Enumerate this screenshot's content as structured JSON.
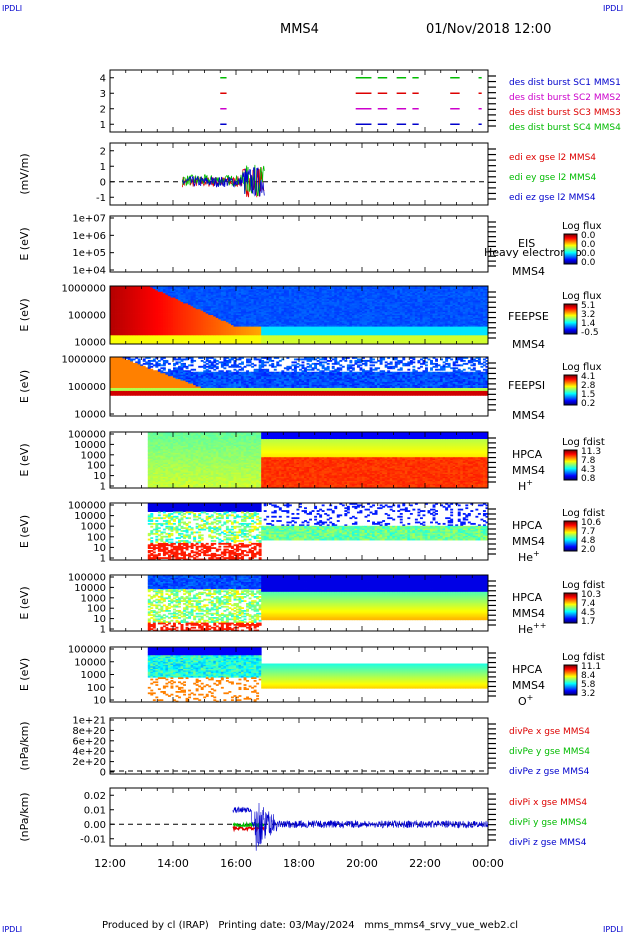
{
  "header": {
    "corner_label": "IPDLI",
    "spacecraft": "MMS4",
    "datetime": "01/Nov/2018 12:00"
  },
  "footer": {
    "corner_label": "IPDLI",
    "text": "Produced by cl (IRAP)   Printing date: 03/May/2024   mms_mms4_srvy_vue_web2.cl"
  },
  "colors": {
    "blue": "#0000cc",
    "magenta": "#cc00cc",
    "red": "#dd0000",
    "green": "#00bb00"
  },
  "chart_data": [
    {
      "type": "line",
      "title": "",
      "ylim": [
        0.5,
        4.5
      ],
      "y_ticks": [
        "4",
        "3",
        "2",
        "1"
      ],
      "legend": [
        {
          "label": "des dist burst SC1 MMS1",
          "color": "#0000cc"
        },
        {
          "label": "des dist burst SC2 MMS2",
          "color": "#cc00cc"
        },
        {
          "label": "des dist burst SC3 MMS3",
          "color": "#dd0000"
        },
        {
          "label": "des dist burst SC4 MMS4",
          "color": "#00bb00"
        }
      ],
      "burst_intervals_hours": [
        [
          15.5,
          15.7
        ],
        [
          19.8,
          20.3
        ],
        [
          20.5,
          20.8
        ],
        [
          21.1,
          21.4
        ],
        [
          21.6,
          21.8
        ],
        [
          22.8,
          23.1
        ],
        [
          23.7,
          23.8
        ]
      ]
    },
    {
      "type": "line",
      "ylabel": "(mV/m)",
      "ylim": [
        -1.5,
        2.5
      ],
      "y_ticks": [
        "2",
        "1",
        "0",
        "-1"
      ],
      "legend": [
        {
          "label": "edi ex gse l2 MMS4",
          "color": "#dd0000"
        },
        {
          "label": "edi ey gse l2 MMS4",
          "color": "#00bb00"
        },
        {
          "label": "edi ez gse l2 MMS4",
          "color": "#0000cc"
        }
      ],
      "data_range_hours": [
        14.3,
        16.9
      ]
    },
    {
      "type": "heatmap",
      "ylabel": "E (eV)",
      "y_ticks": [
        "1e+07",
        "1e+06",
        "1e+05",
        "1e+04"
      ],
      "instrument": "EIS",
      "species": "Heavy electron to",
      "spacecraft": "MMS4",
      "colorbar": {
        "title": "Log flux",
        "ticks": [
          "0.0",
          "0.0",
          "0.0",
          "0.0"
        ]
      }
    },
    {
      "type": "heatmap",
      "ylabel": "E (eV)",
      "y_ticks": [
        "1000000",
        "100000",
        "10000"
      ],
      "instrument": "FEEPSE",
      "spacecraft": "MMS4",
      "colorbar": {
        "title": "Log flux",
        "ticks": [
          "5.1",
          "3.2",
          "1.4",
          "-0.5"
        ]
      }
    },
    {
      "type": "heatmap",
      "ylabel": "E (eV)",
      "y_ticks": [
        "1000000",
        "100000",
        "10000"
      ],
      "instrument": "FEEPSI",
      "spacecraft": "MMS4",
      "colorbar": {
        "title": "Log flux",
        "ticks": [
          "4.1",
          "2.8",
          "1.5",
          "0.2"
        ]
      }
    },
    {
      "type": "heatmap",
      "ylabel": "E (eV)",
      "y_ticks": [
        "100000",
        "10000",
        "1000",
        "100",
        "10",
        "1"
      ],
      "instrument": "HPCA",
      "spacecraft": "MMS4",
      "species_base": "H",
      "species_sup": "+",
      "colorbar": {
        "title": "Log fdist",
        "ticks": [
          "11.3",
          "7.8",
          "4.3",
          "0.8"
        ]
      }
    },
    {
      "type": "heatmap",
      "ylabel": "E (eV)",
      "y_ticks": [
        "100000",
        "10000",
        "1000",
        "100",
        "10",
        "1"
      ],
      "instrument": "HPCA",
      "spacecraft": "MMS4",
      "species_base": "He",
      "species_sup": "+",
      "colorbar": {
        "title": "Log fdist",
        "ticks": [
          "10.6",
          "7.7",
          "4.8",
          "2.0"
        ]
      }
    },
    {
      "type": "heatmap",
      "ylabel": "E (eV)",
      "y_ticks": [
        "100000",
        "10000",
        "1000",
        "100",
        "10",
        "1"
      ],
      "instrument": "HPCA",
      "spacecraft": "MMS4",
      "species_base": "He",
      "species_sup": "++",
      "colorbar": {
        "title": "Log fdist",
        "ticks": [
          "10.3",
          "7.4",
          "4.5",
          "1.7"
        ]
      }
    },
    {
      "type": "heatmap",
      "ylabel": "E (eV)",
      "y_ticks": [
        "100000",
        "10000",
        "1000",
        "100",
        "10"
      ],
      "instrument": "HPCA",
      "spacecraft": "MMS4",
      "species_base": "O",
      "species_sup": "+",
      "colorbar": {
        "title": "Log fdist",
        "ticks": [
          "11.1",
          "8.4",
          "5.8",
          "3.2"
        ]
      }
    },
    {
      "type": "line",
      "ylabel": "(nPa/km)",
      "y_ticks": [
        "1e+21",
        "8e+20",
        "6e+20",
        "4e+20",
        "2e+20",
        "0"
      ],
      "legend": [
        {
          "label": "divPe x gse MMS4",
          "color": "#dd0000"
        },
        {
          "label": "divPe y gse MMS4",
          "color": "#00bb00"
        },
        {
          "label": "divPe z gse MMS4",
          "color": "#0000cc"
        }
      ]
    },
    {
      "type": "line",
      "ylabel": "(nPa/km)",
      "ylim": [
        -0.015,
        0.025
      ],
      "y_ticks": [
        "0.02",
        "0.01",
        "0.00",
        "-0.01"
      ],
      "legend": [
        {
          "label": "divPi x gse MMS4",
          "color": "#dd0000"
        },
        {
          "label": "divPi y gse MMS4",
          "color": "#00bb00"
        },
        {
          "label": "divPi z gse MMS4",
          "color": "#0000cc"
        }
      ],
      "data_range_hours": [
        15.9,
        24.0
      ]
    }
  ],
  "x_axis": {
    "range_hours": [
      12,
      24
    ],
    "tick_labels": [
      "12:00",
      "14:00",
      "16:00",
      "18:00",
      "20:00",
      "22:00",
      "00:00"
    ]
  }
}
